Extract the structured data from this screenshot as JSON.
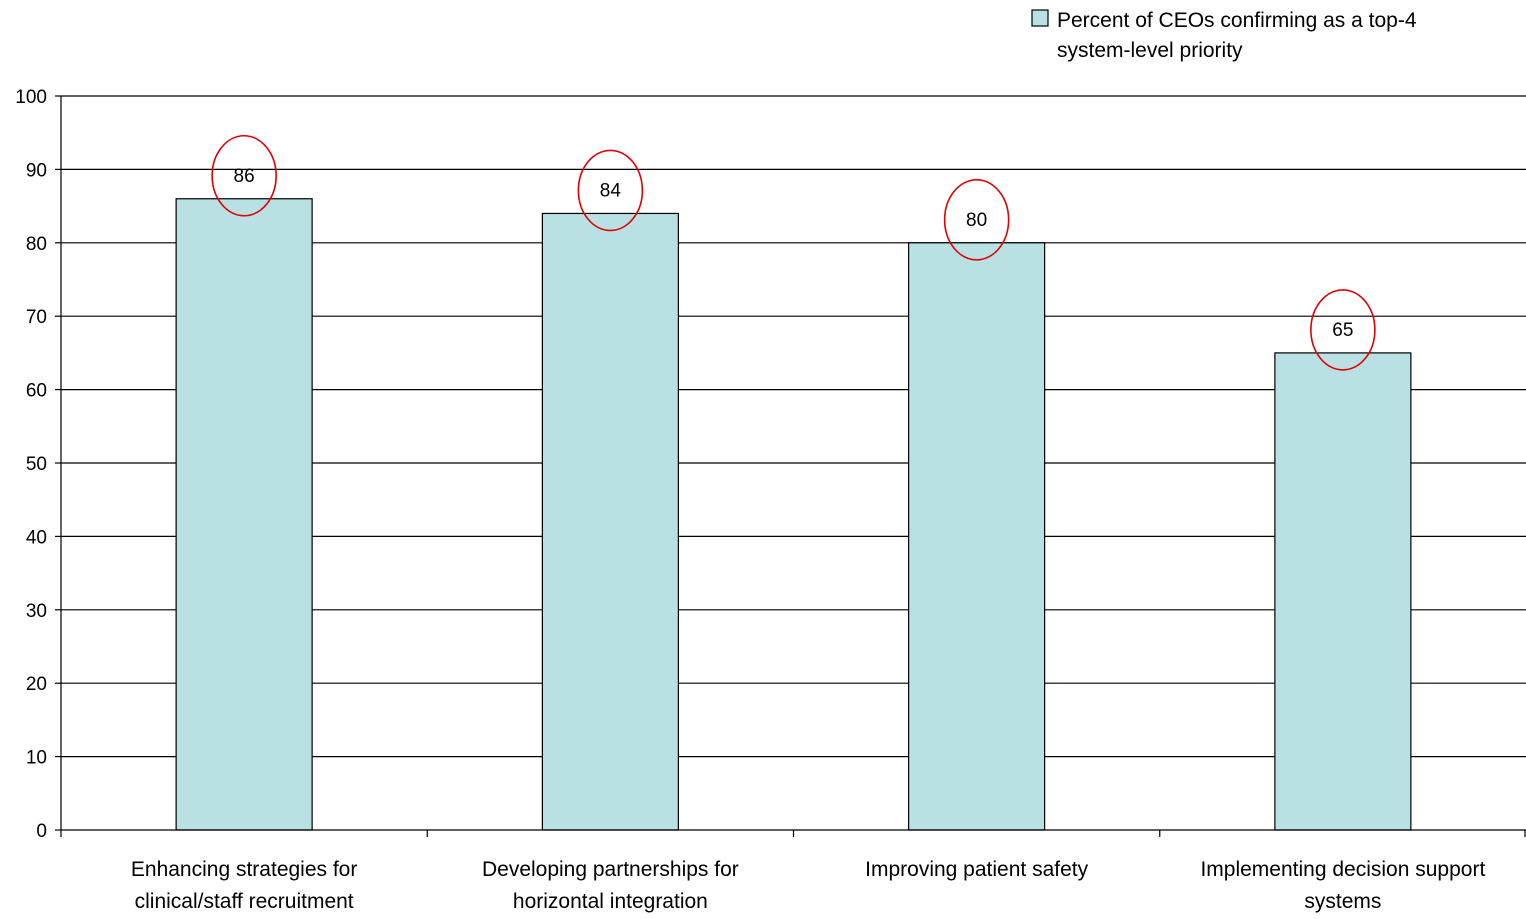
{
  "chart_data": {
    "type": "bar",
    "categories": [
      [
        "Enhancing strategies for",
        "clinical/staff recruitment"
      ],
      [
        "Developing partnerships for",
        "horizontal integration"
      ],
      [
        "Improving patient safety"
      ],
      [
        "Implementing decision support",
        "systems"
      ]
    ],
    "series": [
      {
        "name": [
          "Percent of CEOs confirming as a top-4",
          "system-level priority"
        ],
        "values": [
          86,
          84,
          80,
          65
        ],
        "data_labels": [
          "86",
          "84",
          "80",
          "65"
        ]
      }
    ],
    "ylim": [
      0,
      100
    ],
    "yticks": [
      0,
      10,
      20,
      30,
      40,
      50,
      60,
      70,
      80,
      90,
      100
    ],
    "ytick_labels": [
      "0",
      "10",
      "20",
      "30",
      "40",
      "50",
      "60",
      "70",
      "80",
      "90",
      "100"
    ],
    "grid": true,
    "legend_position": "top-right",
    "annotations": "red ellipse around each data label",
    "colors": {
      "bar_fill": "#b9e0e2",
      "bar_stroke": "#000000",
      "grid": "#000000",
      "ellipse": "#e00000"
    }
  }
}
